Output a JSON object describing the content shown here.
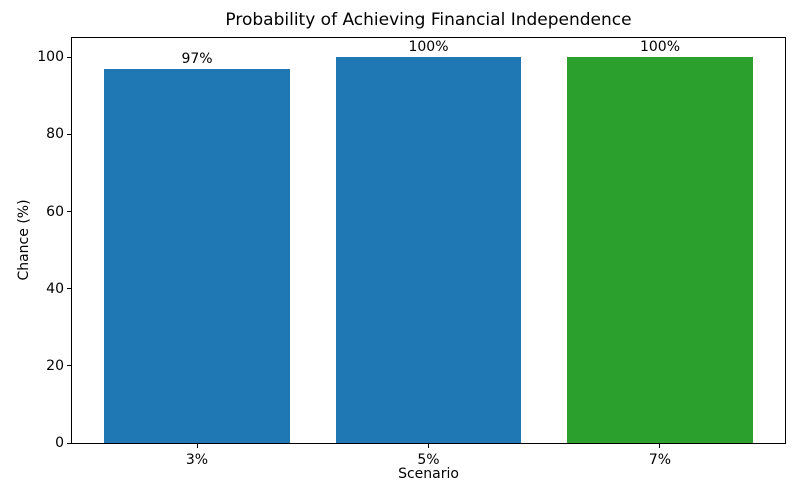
{
  "chart_data": {
    "type": "bar",
    "title": "Probability of Achieving Financial Independence",
    "xlabel": "Scenario",
    "ylabel": "Chance (%)",
    "categories": [
      "3%",
      "5%",
      "7%"
    ],
    "values": [
      97,
      100,
      100
    ],
    "bar_labels": [
      "97%",
      "100%",
      "100%"
    ],
    "bar_colors": [
      "#1f77b4",
      "#1f77b4",
      "#2ca02c"
    ],
    "yticks": [
      0,
      20,
      40,
      60,
      80,
      100
    ],
    "ylim": [
      0,
      105
    ],
    "xlim": [
      -0.54,
      2.54
    ],
    "bar_width": 0.8,
    "grid": false,
    "legend": null,
    "text_color": "#000000",
    "spine_color": "#000000",
    "background_color": "#ffffff"
  }
}
